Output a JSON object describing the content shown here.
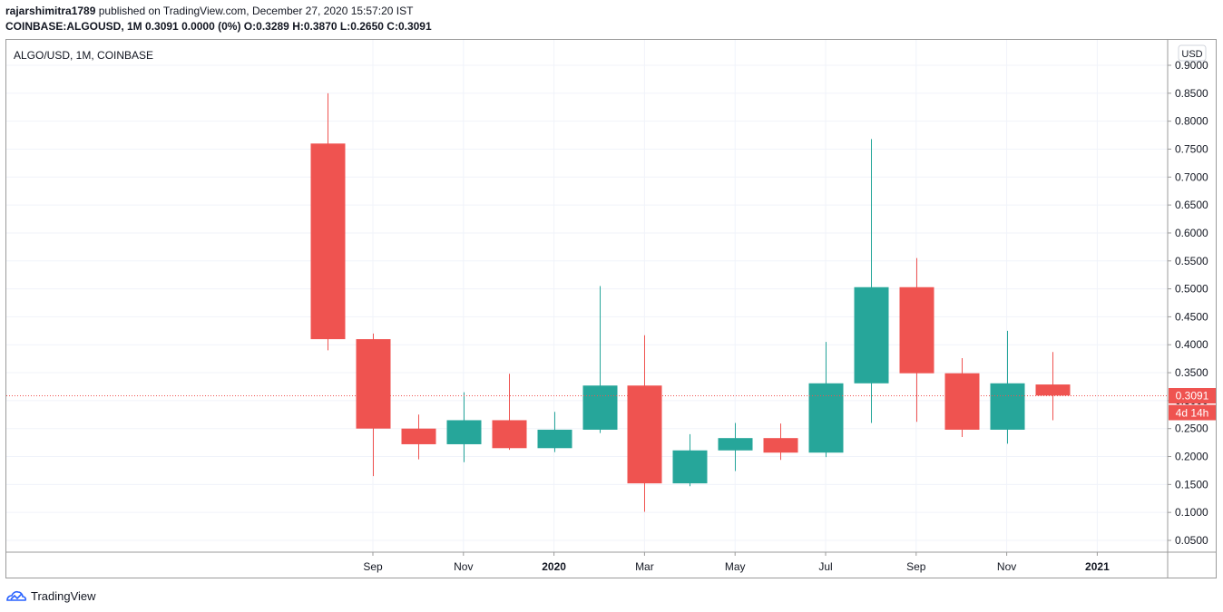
{
  "header": {
    "author": "rajarshimitra1789",
    "published_text": "published on TradingView.com, December 27, 2020 15:57:20 IST",
    "symbol_line": "COINBASE:ALGOUSD, 1M",
    "change_text": "0.3091 0.0000 (0%)",
    "ohlc": {
      "o_label": "O:",
      "o": "0.3289",
      "h_label": "H:",
      "h": "0.3870",
      "l_label": "L:",
      "l": "0.2650",
      "c_label": "C:",
      "c": "0.3091"
    }
  },
  "chart": {
    "pane_title": "ALGO/USD, 1M, COINBASE",
    "currency_label": "USD",
    "last_price_label": "0.3091",
    "countdown_label": "4d 14h"
  },
  "footer": {
    "brand": "TradingView"
  },
  "colors": {
    "up": "#26a69a",
    "down": "#ef5350",
    "grid": "#f0f3fa",
    "axis_text": "#131722",
    "border": "#9b9b9b"
  },
  "chart_data": {
    "type": "candlestick",
    "title": "ALGO/USD, 1M, COINBASE",
    "y_axis": {
      "ticks": [
        0.05,
        0.1,
        0.15,
        0.2,
        0.25,
        0.3,
        0.35,
        0.4,
        0.45,
        0.5,
        0.55,
        0.6,
        0.65,
        0.7,
        0.75,
        0.8,
        0.85,
        0.9
      ],
      "tick_format_decimals": 4,
      "ylim": [
        0.03,
        0.91
      ]
    },
    "x_axis": {
      "tick_labels": [
        "Sep",
        "Nov",
        "2020",
        "Mar",
        "May",
        "Jul",
        "Sep",
        "Nov",
        "2021"
      ],
      "tick_months": [
        "2019-09",
        "2019-11",
        "2020-01",
        "2020-03",
        "2020-05",
        "2020-07",
        "2020-09",
        "2020-11",
        "2021-01"
      ],
      "bold_ticks": [
        "2020",
        "2021"
      ],
      "xlim": [
        "2019-04",
        "2021-02"
      ]
    },
    "candles": [
      {
        "month": "2019-08",
        "open": 0.76,
        "high": 0.85,
        "low": 0.39,
        "close": 0.41
      },
      {
        "month": "2019-09",
        "open": 0.41,
        "high": 0.42,
        "low": 0.165,
        "close": 0.25
      },
      {
        "month": "2019-10",
        "open": 0.25,
        "high": 0.275,
        "low": 0.195,
        "close": 0.222
      },
      {
        "month": "2019-11",
        "open": 0.222,
        "high": 0.315,
        "low": 0.19,
        "close": 0.265
      },
      {
        "month": "2019-12",
        "open": 0.265,
        "high": 0.348,
        "low": 0.212,
        "close": 0.215
      },
      {
        "month": "2020-01",
        "open": 0.215,
        "high": 0.28,
        "low": 0.208,
        "close": 0.248
      },
      {
        "month": "2020-02",
        "open": 0.248,
        "high": 0.505,
        "low": 0.242,
        "close": 0.327
      },
      {
        "month": "2020-03",
        "open": 0.327,
        "high": 0.417,
        "low": 0.101,
        "close": 0.152
      },
      {
        "month": "2020-04",
        "open": 0.152,
        "high": 0.24,
        "low": 0.147,
        "close": 0.211
      },
      {
        "month": "2020-05",
        "open": 0.211,
        "high": 0.26,
        "low": 0.174,
        "close": 0.233
      },
      {
        "month": "2020-06",
        "open": 0.233,
        "high": 0.259,
        "low": 0.194,
        "close": 0.207
      },
      {
        "month": "2020-07",
        "open": 0.207,
        "high": 0.405,
        "low": 0.199,
        "close": 0.331
      },
      {
        "month": "2020-08",
        "open": 0.331,
        "high": 0.768,
        "low": 0.26,
        "close": 0.503
      },
      {
        "month": "2020-09",
        "open": 0.503,
        "high": 0.555,
        "low": 0.262,
        "close": 0.349
      },
      {
        "month": "2020-10",
        "open": 0.349,
        "high": 0.376,
        "low": 0.235,
        "close": 0.248
      },
      {
        "month": "2020-11",
        "open": 0.248,
        "high": 0.425,
        "low": 0.223,
        "close": 0.331
      },
      {
        "month": "2020-12",
        "open": 0.3289,
        "high": 0.387,
        "low": 0.265,
        "close": 0.3091
      }
    ],
    "last_price": 0.3091,
    "grid": true
  }
}
